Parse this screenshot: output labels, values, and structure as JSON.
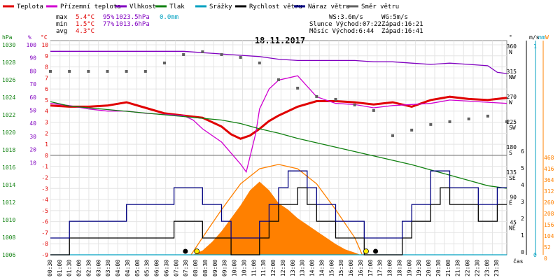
{
  "chart_data": {
    "type": "line",
    "title": "18.11.2017",
    "xlabel": "čas",
    "x": [
      "00:30",
      "01:00",
      "01:30",
      "02:00",
      "02:30",
      "03:00",
      "03:30",
      "04:00",
      "04:30",
      "05:00",
      "05:30",
      "06:00",
      "06:30",
      "07:00",
      "07:30",
      "08:00",
      "08:30",
      "09:00",
      "09:30",
      "10:00",
      "10:30",
      "11:00",
      "11:30",
      "12:00",
      "12:30",
      "13:00",
      "13:30",
      "14:00",
      "14:30",
      "15:00",
      "15:30",
      "16:00",
      "16:30",
      "17:00",
      "17:30",
      "18:00",
      "18:30",
      "19:00",
      "19:30",
      "20:00",
      "20:30",
      "21:00",
      "21:30",
      "22:00",
      "22:30",
      "23:00",
      "23:30"
    ],
    "legend": [
      {
        "label": "Teplota",
        "color": "#e00000"
      },
      {
        "label": "Přízemní teplota",
        "color": "#d000d0"
      },
      {
        "label": "Vlhkost",
        "color": "#8000c0"
      },
      {
        "label": "Tlak",
        "color": "#108010"
      },
      {
        "label": "Srážky",
        "color": "#00a0c0"
      },
      {
        "label": "Rychlost větru",
        "color": "#000000"
      },
      {
        "label": "Náraz větru",
        "color": "#000080"
      },
      {
        "label": "Směr větru",
        "color": "#606060"
      }
    ],
    "stats": {
      "rows": [
        {
          "label": "max",
          "temp": "5.4°C",
          "hum": "95%",
          "press": "1023.5hPa",
          "rain": "0.0mm"
        },
        {
          "label": "min",
          "temp": "1.5°C",
          "hum": "77%",
          "press": "1013.6hPa",
          "rain": ""
        },
        {
          "label": "avg",
          "temp": "4.3°C",
          "hum": "",
          "press": "",
          "rain": ""
        }
      ],
      "wind": "WS:3.6m/s",
      "gust": "WG:5m/s",
      "sun": "Slunce Východ:07:22",
      "sunset": "Západ:16:21",
      "moon": "Měsíc Východ:6:44",
      "moonset": "Západ:16:41"
    },
    "axes": {
      "hpa": {
        "label": "hPa",
        "ticks": [
          "1030",
          "1028",
          "1026",
          "1024",
          "1022",
          "1020",
          "1018",
          "1016",
          "1014",
          "1012",
          "1010",
          "1008",
          "1006"
        ]
      },
      "pct": {
        "label": "%",
        "ticks": [
          "100",
          "90",
          "80",
          "70",
          "60",
          "50",
          "40",
          "30",
          "20",
          "10"
        ]
      },
      "deg": {
        "label": "°C",
        "ticks": [
          "10",
          "9",
          "8",
          "7",
          "6",
          "5",
          "4",
          "3",
          "2",
          "1",
          "0",
          "-1",
          "-2",
          "-3",
          "-4",
          "-5",
          "-6",
          "-7",
          "-8",
          "-9"
        ]
      },
      "dir": {
        "label": "°",
        "ticks": [
          [
            "360",
            "N"
          ],
          [
            "315",
            "NW"
          ],
          [
            "270",
            "W"
          ],
          [
            "225",
            "SW"
          ],
          [
            "180",
            "S"
          ],
          [
            "135",
            "SE"
          ],
          [
            "90",
            "E"
          ],
          [
            "45",
            "NE"
          ]
        ]
      },
      "ms": {
        "label": "m/s",
        "ticks": [
          "6",
          "5",
          "4",
          "3",
          "2",
          "1",
          "0"
        ]
      },
      "mm": {
        "label": "mm",
        "ticks": [
          "1",
          "0"
        ]
      },
      "w": {
        "label": "W",
        "ticks": [
          "468",
          "416",
          "364",
          "312",
          "260",
          "208",
          "156",
          "104",
          "52",
          "0"
        ]
      }
    },
    "series": [
      {
        "name": "Teplota",
        "unit": "°C",
        "color": "#e00000",
        "x": [
          0,
          1,
          2,
          3,
          4,
          5,
          6,
          7,
          8,
          9,
          9.5,
          10,
          10.5,
          11,
          11.5,
          12,
          13,
          14,
          15,
          16,
          17,
          18,
          19,
          20,
          21,
          22,
          23,
          24
        ],
        "values": [
          4.5,
          4.4,
          4.4,
          4.5,
          4.8,
          4.3,
          3.8,
          3.6,
          3.4,
          2.6,
          1.9,
          1.5,
          1.8,
          2.4,
          3.1,
          3.6,
          4.4,
          4.9,
          4.9,
          4.8,
          4.6,
          4.8,
          4.4,
          5.0,
          5.3,
          5.1,
          5.0,
          5.2
        ]
      },
      {
        "name": "Přízemní teplota",
        "unit": "°C",
        "color": "#d000d0",
        "x": [
          0,
          1,
          2,
          3,
          4,
          5,
          6,
          7,
          7.5,
          8,
          8.5,
          9,
          9.5,
          10,
          10.3,
          10.8,
          11,
          11.5,
          12,
          13,
          14,
          15,
          16,
          17,
          18,
          19,
          20,
          21,
          22,
          23,
          24
        ],
        "values": [
          4.7,
          4.5,
          4.2,
          4.0,
          4.0,
          3.8,
          3.7,
          3.6,
          3.2,
          2.4,
          1.8,
          1.2,
          0.2,
          -0.8,
          -1.5,
          2.0,
          4.2,
          6.0,
          6.8,
          7.2,
          5.3,
          4.7,
          4.6,
          4.3,
          4.5,
          4.6,
          4.7,
          5.0,
          4.9,
          4.8,
          4.7
        ]
      },
      {
        "name": "Vlhkost",
        "unit": "%",
        "color": "#8000c0",
        "x": [
          0,
          2,
          4,
          6,
          7,
          8,
          9,
          10,
          11,
          12,
          13,
          14,
          15,
          16,
          17,
          18,
          19,
          20,
          21,
          22,
          23,
          23.5,
          24
        ],
        "values": [
          95,
          95,
          95,
          95,
          95,
          94,
          93,
          92,
          91,
          89,
          88,
          88,
          88,
          88,
          87,
          87,
          86,
          85,
          86,
          85,
          84,
          79,
          78
        ]
      },
      {
        "name": "Tlak",
        "unit": "hPa",
        "color": "#108010",
        "x": [
          0,
          1,
          2,
          3,
          4,
          5,
          6,
          7,
          8,
          9,
          10,
          11,
          12,
          13,
          14,
          15,
          16,
          17,
          18,
          19,
          20,
          21,
          22,
          23,
          24
        ],
        "values": [
          1023.5,
          1023.0,
          1022.8,
          1022.6,
          1022.4,
          1022.2,
          1022.0,
          1021.8,
          1021.6,
          1021.4,
          1021.0,
          1020.4,
          1019.9,
          1019.3,
          1018.8,
          1018.3,
          1017.8,
          1017.3,
          1016.8,
          1016.3,
          1015.7,
          1015.1,
          1014.5,
          1013.9,
          1013.6
        ]
      },
      {
        "name": "Srážky",
        "unit": "mm",
        "color": "#00a0c0",
        "x": [
          0,
          24
        ],
        "values": [
          0,
          0
        ]
      },
      {
        "name": "Rychlost větru",
        "unit": "m/s",
        "color": "#000000",
        "x": [
          0,
          1,
          2,
          3,
          4,
          5,
          6,
          6.5,
          7,
          7.5,
          8,
          9,
          9.5,
          10,
          10.5,
          11,
          11.5,
          12,
          12.5,
          13,
          13.5,
          14,
          14.5,
          15,
          15.5,
          16,
          16.5,
          17,
          18,
          18.5,
          19,
          19.5,
          20,
          20.5,
          21,
          21.5,
          22,
          22.5,
          23,
          23.5,
          24
        ],
        "values": [
          0,
          1,
          1,
          1,
          1,
          1,
          1,
          2,
          2,
          2,
          1,
          1,
          0,
          0,
          0,
          1,
          2,
          3,
          3,
          4,
          3,
          2,
          2,
          1,
          1,
          1,
          0,
          0,
          0,
          1,
          2,
          2,
          3,
          4,
          3,
          3,
          3,
          2,
          2,
          3,
          3
        ]
      },
      {
        "name": "Náraz větru",
        "unit": "m/s",
        "color": "#000080",
        "x": [
          0,
          1,
          2,
          3,
          4,
          5,
          6,
          6.5,
          7,
          7.5,
          8,
          9,
          9.5,
          10,
          10.5,
          11,
          11.5,
          12,
          12.5,
          13,
          13.5,
          14,
          14.5,
          15,
          15.5,
          16,
          16.5,
          17,
          18,
          18.5,
          19,
          19.5,
          20,
          20.5,
          21,
          21.5,
          22,
          22.5,
          23,
          23.5,
          24
        ],
        "values": [
          1,
          2,
          2,
          2,
          3,
          3,
          3,
          4,
          4,
          4,
          3,
          2,
          1,
          1,
          1,
          2,
          3,
          4,
          5,
          5,
          4,
          3,
          3,
          2,
          2,
          2,
          1,
          1,
          1,
          2,
          3,
          3,
          5,
          5,
          4,
          4,
          4,
          3,
          3,
          4,
          4
        ]
      },
      {
        "name": "Směr větru",
        "unit": "°",
        "color": "#606060",
        "x": [
          0,
          1,
          2,
          3,
          4,
          5,
          6,
          7,
          8,
          9,
          10,
          11,
          12,
          13,
          14,
          15,
          16,
          17,
          18,
          19,
          20,
          21,
          22,
          23,
          24
        ],
        "values": [
          315,
          315,
          315,
          315,
          315,
          315,
          330,
          345,
          350,
          345,
          340,
          330,
          300,
          285,
          270,
          265,
          255,
          245,
          200,
          210,
          220,
          225,
          230,
          235,
          225
        ]
      }
    ],
    "solar": {
      "name": "Solar",
      "unit": "W",
      "color": "#ff8000",
      "x": [
        7.5,
        8,
        8.5,
        9,
        9.5,
        10,
        10.5,
        11,
        11.5,
        12,
        12.5,
        13,
        13.5,
        14,
        14.5,
        15,
        15.5,
        16,
        16.3
      ],
      "values": [
        0,
        20,
        60,
        110,
        170,
        230,
        300,
        340,
        300,
        240,
        210,
        170,
        140,
        110,
        80,
        50,
        25,
        10,
        0
      ]
    },
    "clear_sky": {
      "name": "Clear sky",
      "color": "#ff8000",
      "x": [
        7.4,
        8,
        9,
        10,
        11,
        12,
        13,
        14,
        15,
        16,
        16.4
      ],
      "values": [
        0,
        80,
        210,
        330,
        400,
        420,
        400,
        330,
        210,
        80,
        0
      ]
    },
    "grid": true,
    "legend_position": "top"
  }
}
